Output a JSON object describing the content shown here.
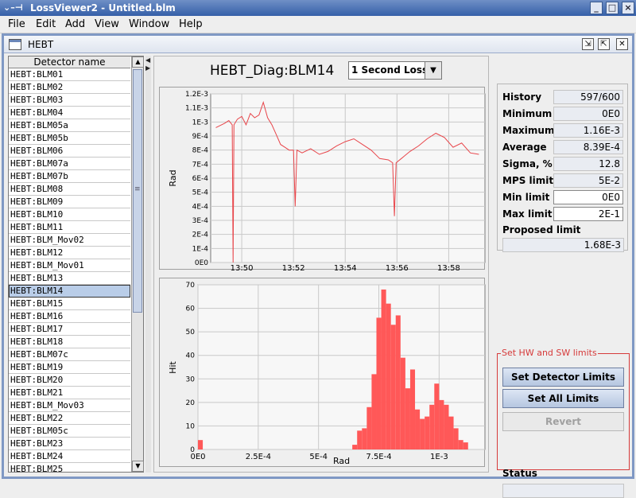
{
  "window": {
    "title": "LossViewer2 - Untitled.blm",
    "left_glyph": "⌄–⊣",
    "minimize_label": "_",
    "maximize_label": "□",
    "close_label": "×"
  },
  "menu": [
    "File",
    "Edit",
    "Add",
    "View",
    "Window",
    "Help"
  ],
  "internal_frame": {
    "title": "HEBT",
    "iconify_label": "⇲",
    "maximize_label": "⇱",
    "close_label": "✕"
  },
  "list": {
    "header": "Detector name",
    "selected": "HEBT:BLM14",
    "items": [
      "HEBT:BLM01",
      "HEBT:BLM02",
      "HEBT:BLM03",
      "HEBT:BLM04",
      "HEBT:BLM05a",
      "HEBT:BLM05b",
      "HEBT:BLM06",
      "HEBT:BLM07a",
      "HEBT:BLM07b",
      "HEBT:BLM08",
      "HEBT:BLM09",
      "HEBT:BLM10",
      "HEBT:BLM11",
      "HEBT:BLM_Mov02",
      "HEBT:BLM12",
      "HEBT:BLM_Mov01",
      "HEBT:BLM13",
      "HEBT:BLM14",
      "HEBT:BLM15",
      "HEBT:BLM16",
      "HEBT:BLM17",
      "HEBT:BLM18",
      "HEBT:BLM07c",
      "HEBT:BLM19",
      "HEBT:BLM20",
      "HEBT:BLM21",
      "HEBT:BLM_Mov03",
      "HEBT:BLM22",
      "HEBT:BLM05c",
      "HEBT:BLM23",
      "HEBT:BLM24",
      "HEBT:BLM25"
    ]
  },
  "device": {
    "title": "HEBT_Diag:BLM14",
    "loss_mode": "1 Second Loss",
    "loss_mode_arrow": "▼"
  },
  "stats": [
    {
      "label": "History",
      "value": "597/600",
      "editable": false
    },
    {
      "label": "Minimum",
      "value": "0E0",
      "editable": false
    },
    {
      "label": "Maximum",
      "value": "1.16E-3",
      "editable": false
    },
    {
      "label": "Average",
      "value": "8.39E-4",
      "editable": false
    },
    {
      "label": "Sigma, %",
      "value": "12.8",
      "editable": false
    },
    {
      "label": "MPS limit",
      "value": "5E-2",
      "editable": false
    },
    {
      "label": "Min limit",
      "value": "0E0",
      "editable": true
    },
    {
      "label": "Max limit",
      "value": "2E-1",
      "editable": true
    }
  ],
  "proposed_limit": {
    "label": "Proposed limit",
    "value": "1.68E-3"
  },
  "limits_group": {
    "title": "Set HW and SW limits",
    "set_detector": "Set Detector Limits",
    "set_all": "Set All Limits",
    "revert": "Revert",
    "status_label": "Status",
    "status_value": ""
  },
  "colors": {
    "accent": "#6b86b8",
    "plot_line": "#e8454a",
    "bar_fill": "#ff5858",
    "group_border": "#d63a3a"
  },
  "chart_data": [
    {
      "type": "line",
      "title": "",
      "xlabel": "",
      "ylabel": "Rad",
      "x_ticks": [
        "13:50",
        "13:52",
        "13:54",
        "13:56",
        "13:58"
      ],
      "y_ticks": [
        "0E0",
        "1E-4",
        "2E-4",
        "3E-4",
        "4E-4",
        "5E-4",
        "6E-4",
        "7E-4",
        "8E-4",
        "9E-4",
        "1E-3",
        "1.1E-3",
        "1.2E-3"
      ],
      "xlim": [
        "13:48:48",
        "13:59:24"
      ],
      "ylim": [
        0,
        0.0012
      ],
      "grid": true,
      "series": [
        {
          "points": [
            [
              "13:49:00",
              0.00096
            ],
            [
              "13:49:20",
              0.00099
            ],
            [
              "13:49:30",
              0.00101
            ],
            [
              "13:49:38",
              0.00098
            ],
            [
              "13:49:40",
              0.0
            ],
            [
              "13:49:42",
              0.00098
            ],
            [
              "13:49:50",
              0.00102
            ],
            [
              "13:50:00",
              0.00104
            ],
            [
              "13:50:10",
              0.00098
            ],
            [
              "13:50:20",
              0.00106
            ],
            [
              "13:50:30",
              0.00103
            ],
            [
              "13:50:40",
              0.00105
            ],
            [
              "13:50:50",
              0.00114
            ],
            [
              "13:51:00",
              0.00103
            ],
            [
              "13:51:10",
              0.00098
            ],
            [
              "13:51:20",
              0.00091
            ],
            [
              "13:51:30",
              0.00084
            ],
            [
              "13:51:40",
              0.00082
            ],
            [
              "13:51:50",
              0.0008
            ],
            [
              "13:52:00",
              0.0008
            ],
            [
              "13:52:04",
              0.0004
            ],
            [
              "13:52:08",
              0.0008
            ],
            [
              "13:52:20",
              0.00078
            ],
            [
              "13:52:40",
              0.00081
            ],
            [
              "13:53:00",
              0.00077
            ],
            [
              "13:53:20",
              0.00079
            ],
            [
              "13:53:40",
              0.00083
            ],
            [
              "13:54:00",
              0.00086
            ],
            [
              "13:54:20",
              0.00088
            ],
            [
              "13:54:40",
              0.00084
            ],
            [
              "13:55:00",
              0.0008
            ],
            [
              "13:55:20",
              0.00074
            ],
            [
              "13:55:40",
              0.00073
            ],
            [
              "13:55:50",
              0.00071
            ],
            [
              "13:55:54",
              0.00033
            ],
            [
              "13:55:58",
              0.00071
            ],
            [
              "13:56:10",
              0.00074
            ],
            [
              "13:56:30",
              0.00079
            ],
            [
              "13:56:50",
              0.00083
            ],
            [
              "13:57:10",
              0.00088
            ],
            [
              "13:57:30",
              0.00092
            ],
            [
              "13:57:50",
              0.00089
            ],
            [
              "13:58:10",
              0.00082
            ],
            [
              "13:58:30",
              0.00085
            ],
            [
              "13:58:50",
              0.00078
            ],
            [
              "13:59:10",
              0.00077
            ]
          ]
        }
      ]
    },
    {
      "type": "bar",
      "title": "",
      "xlabel": "Rad",
      "ylabel": "Hit",
      "x_ticks": [
        "0E0",
        "2.5E-4",
        "5E-4",
        "7.5E-4",
        "1E-3"
      ],
      "xlim": [
        0,
        0.00119
      ],
      "ylim": [
        0,
        70
      ],
      "y_ticks": [
        0,
        10,
        20,
        30,
        40,
        50,
        60,
        70
      ],
      "bin_width": 2e-05,
      "grid": true,
      "bins": [
        [
          0.0,
          4
        ],
        [
          0.00064,
          2
        ],
        [
          0.00066,
          8
        ],
        [
          0.00068,
          9
        ],
        [
          0.0007,
          18
        ],
        [
          0.00072,
          32
        ],
        [
          0.00074,
          56
        ],
        [
          0.00076,
          68
        ],
        [
          0.00078,
          62
        ],
        [
          0.0008,
          53
        ],
        [
          0.00082,
          57
        ],
        [
          0.00084,
          39
        ],
        [
          0.00086,
          26
        ],
        [
          0.00088,
          34
        ],
        [
          0.0009,
          17
        ],
        [
          0.00092,
          13
        ],
        [
          0.00094,
          14
        ],
        [
          0.00096,
          19
        ],
        [
          0.00098,
          28
        ],
        [
          0.001,
          21
        ],
        [
          0.00102,
          19
        ],
        [
          0.00104,
          14
        ],
        [
          0.00106,
          9
        ],
        [
          0.00108,
          4
        ],
        [
          0.0011,
          3
        ]
      ]
    }
  ]
}
